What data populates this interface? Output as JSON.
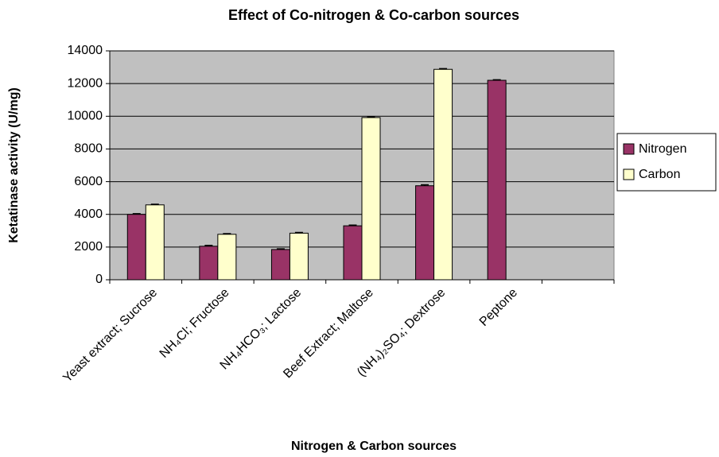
{
  "chart_data": {
    "type": "bar",
    "title": "Effect of Co-nitrogen & Co-carbon sources",
    "xlabel": "Nitrogen & Carbon sources",
    "ylabel": "Ketatinase activity (U/mg)",
    "categories": [
      "Yeast extract; Sucrose",
      "NH₄Cl; Fructose",
      "NH₄HCO₃; Lactose",
      "Beef Extract; Maltose",
      "(NH₄)₂SO₄; Dextrose",
      "Peptone",
      null
    ],
    "series": [
      {
        "name": "Nitrogen",
        "color": "#993366",
        "values": [
          4000,
          2050,
          1850,
          3300,
          5750,
          12200,
          null
        ],
        "errors": [
          40,
          50,
          40,
          40,
          60,
          30,
          null
        ]
      },
      {
        "name": "Carbon",
        "color": "#ffffcc",
        "values": [
          4580,
          2780,
          2850,
          9920,
          12870,
          null,
          null
        ],
        "errors": [
          40,
          40,
          40,
          60,
          40,
          null,
          null
        ]
      }
    ],
    "ylim": [
      0,
      14000
    ],
    "yticks": [
      0,
      2000,
      4000,
      6000,
      8000,
      10000,
      12000,
      14000
    ],
    "grid": true,
    "legend": "right",
    "plot_background": "#c0c0c0"
  }
}
